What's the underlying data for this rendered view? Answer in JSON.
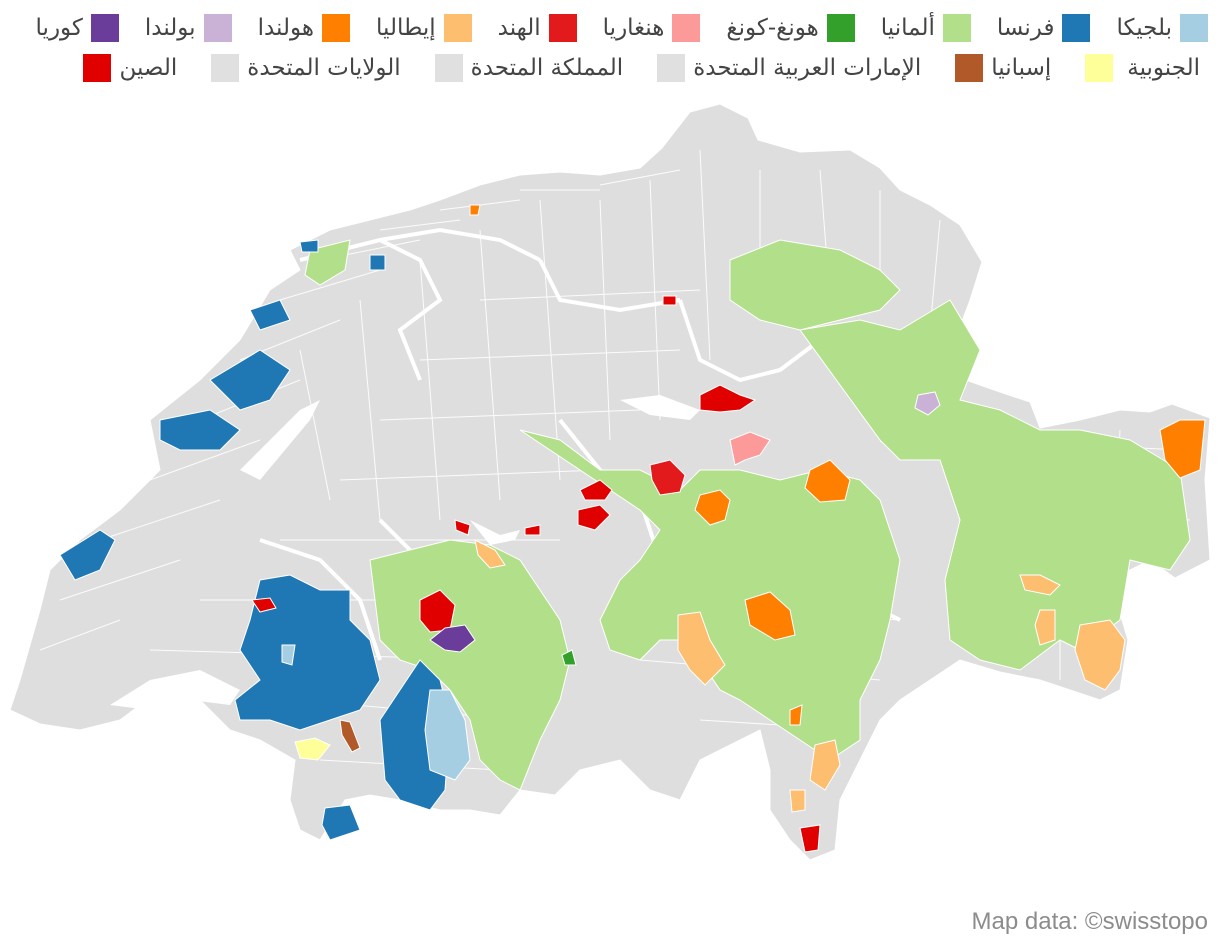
{
  "legend": {
    "row1": [
      {
        "label": "بلجيكا",
        "color": "#a6cee3"
      },
      {
        "label": "فرنسا",
        "color": "#1f78b4"
      },
      {
        "label": "ألمانيا",
        "color": "#b2df8a"
      },
      {
        "label": "هونغ-كونغ",
        "color": "#33a02c"
      },
      {
        "label": "هنغاريا",
        "color": "#fb9a99"
      },
      {
        "label": "الهند",
        "color": "#e31a1c"
      },
      {
        "label": "إيطاليا",
        "color": "#fdbf6f"
      },
      {
        "label": "هولندا",
        "color": "#ff7f00"
      },
      {
        "label": "بولندا",
        "color": "#cab2d6"
      },
      {
        "label": "كوريا",
        "color": "#6a3d9a"
      }
    ],
    "row2": [
      {
        "label": "الجنوبية",
        "color": "#ffff99"
      },
      {
        "label": "إسبانيا",
        "color": "#b15928"
      },
      {
        "label": "الإمارات العربية المتحدة",
        "color": "#e0e0e0"
      },
      {
        "label": "المملكة المتحدة",
        "color": "#e0e0e0"
      },
      {
        "label": "الولايات المتحدة",
        "color": "#e0e0e0"
      },
      {
        "label": "الصين",
        "color": "#e00000"
      }
    ]
  },
  "map": {
    "base_color": "#dedede",
    "border_color": "#ffffff"
  },
  "credit": "Map data: ©swisstopo"
}
